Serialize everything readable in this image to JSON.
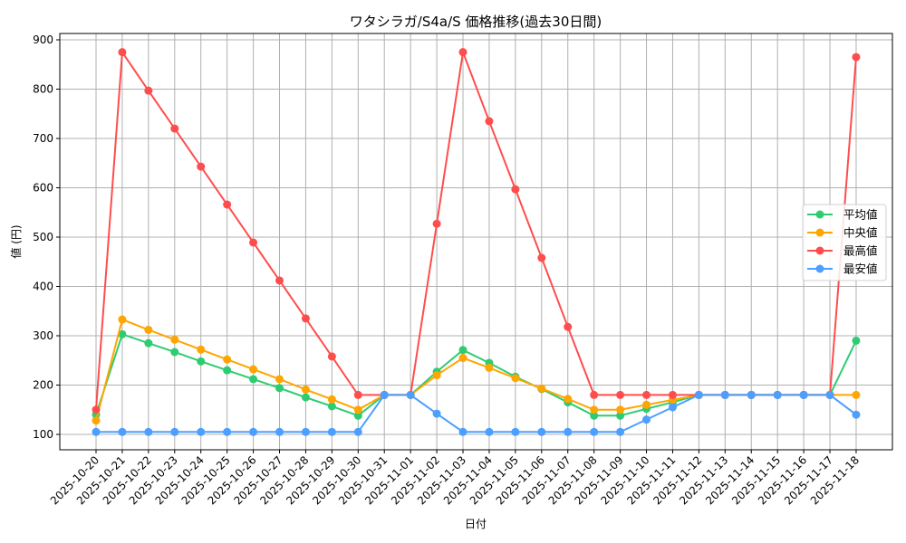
{
  "chart_data": {
    "type": "line",
    "title": "ワタシラガ/S4a/S 価格推移(過去30日間)",
    "xlabel": "日付",
    "ylabel": "値 (円)",
    "ylim": [
      65,
      915
    ],
    "yticks": [
      100,
      200,
      300,
      400,
      500,
      600,
      700,
      800,
      900
    ],
    "grid": true,
    "legend_position": "center right",
    "categories": [
      "2025-10-20",
      "2025-10-21",
      "2025-10-22",
      "2025-10-23",
      "2025-10-24",
      "2025-10-25",
      "2025-10-26",
      "2025-10-27",
      "2025-10-28",
      "2025-10-29",
      "2025-10-30",
      "2025-10-31",
      "2025-11-01",
      "2025-11-02",
      "2025-11-03",
      "2025-11-04",
      "2025-11-05",
      "2025-11-06",
      "2025-11-07",
      "2025-11-08",
      "2025-11-09",
      "2025-11-10",
      "2025-11-11",
      "2025-11-12",
      "2025-11-13",
      "2025-11-14",
      "2025-11-15",
      "2025-11-16",
      "2025-11-17",
      "2025-11-18"
    ],
    "series": [
      {
        "name": "平均値",
        "color": "#2ecc71",
        "values": [
          140,
          303,
          285,
          267,
          248,
          230,
          212,
          194,
          175,
          157,
          138,
          180,
          180,
          227,
          271,
          245,
          217,
          192,
          165,
          138,
          138,
          152,
          165,
          180,
          180,
          180,
          180,
          180,
          180,
          290
        ]
      },
      {
        "name": "中央値",
        "color": "#ffa500",
        "values": [
          128,
          333,
          312,
          292,
          272,
          252,
          232,
          212,
          191,
          171,
          150,
          180,
          180,
          220,
          255,
          235,
          214,
          193,
          172,
          150,
          150,
          160,
          170,
          180,
          180,
          180,
          180,
          180,
          180,
          180
        ]
      },
      {
        "name": "最高値",
        "color": "#ff4d4d",
        "values": [
          150,
          875,
          797,
          720,
          643,
          566,
          489,
          412,
          335,
          258,
          180,
          180,
          180,
          527,
          875,
          735,
          597,
          458,
          318,
          180,
          180,
          180,
          180,
          180,
          180,
          180,
          180,
          180,
          180,
          865
        ]
      },
      {
        "name": "最安値",
        "color": "#4d9fff",
        "values": [
          105,
          105,
          105,
          105,
          105,
          105,
          105,
          105,
          105,
          105,
          105,
          180,
          180,
          142,
          105,
          105,
          105,
          105,
          105,
          105,
          105,
          130,
          155,
          180,
          180,
          180,
          180,
          180,
          180,
          140
        ]
      }
    ]
  }
}
